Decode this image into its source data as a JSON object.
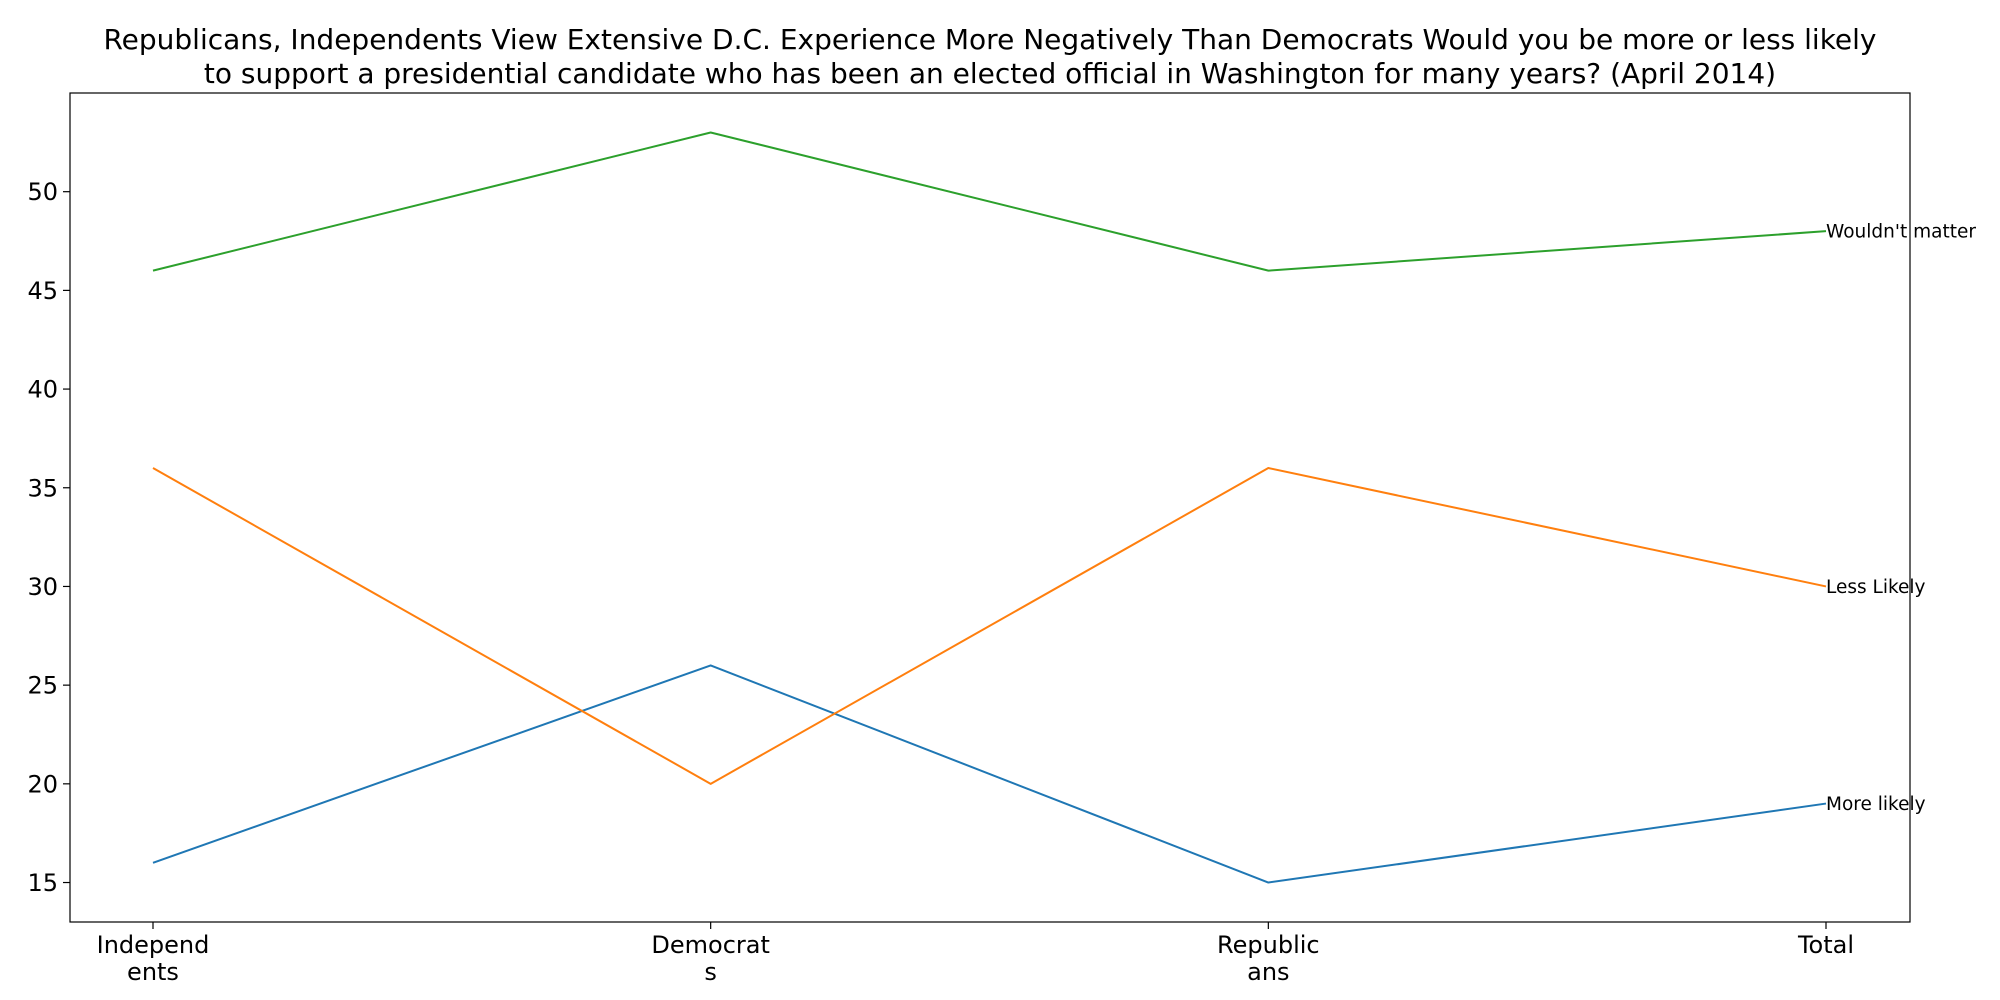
{
  "chart_data": {
    "type": "line",
    "title_lines": [
      "Republicans, Independents View Extensive D.C. Experience More Negatively Than Democrats Would you be more or less likely",
      "to support a presidential candidate who has been an elected official in Washington for many years? (April 2014)"
    ],
    "categories": [
      "Independents",
      "Democrats",
      "Republicans",
      "Total"
    ],
    "category_label_lines": [
      [
        "Independ",
        "ents"
      ],
      [
        "Democrat",
        "s"
      ],
      [
        "Republic",
        "ans"
      ],
      [
        "Total"
      ]
    ],
    "yticks": [
      15,
      20,
      25,
      30,
      35,
      40,
      45,
      50
    ],
    "ylim": [
      13,
      55
    ],
    "grid": false,
    "legend": "none (series labeled at line ends)",
    "series": [
      {
        "name": "More likely",
        "values": [
          16,
          26,
          15,
          19
        ],
        "color": "#1f77b4"
      },
      {
        "name": "Less Likely",
        "values": [
          36,
          20,
          36,
          30
        ],
        "color": "#ff7f0e"
      },
      {
        "name": "Wouldn't matter",
        "values": [
          46,
          53,
          46,
          48
        ],
        "color": "#2ca02c"
      }
    ]
  }
}
